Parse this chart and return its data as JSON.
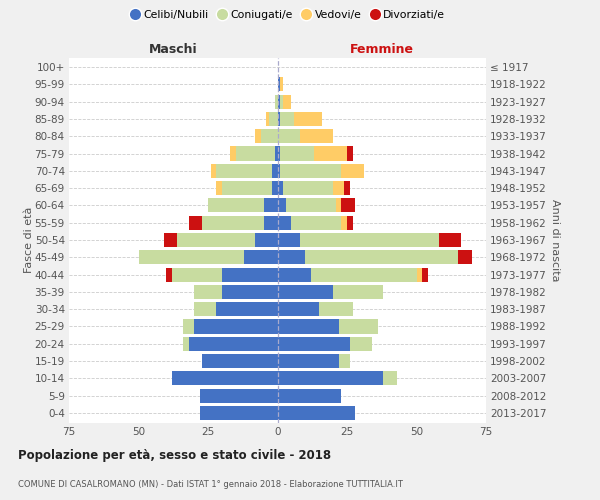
{
  "age_groups": [
    "0-4",
    "5-9",
    "10-14",
    "15-19",
    "20-24",
    "25-29",
    "30-34",
    "35-39",
    "40-44",
    "45-49",
    "50-54",
    "55-59",
    "60-64",
    "65-69",
    "70-74",
    "75-79",
    "80-84",
    "85-89",
    "90-94",
    "95-99",
    "100+"
  ],
  "birth_years": [
    "2013-2017",
    "2008-2012",
    "2003-2007",
    "1998-2002",
    "1993-1997",
    "1988-1992",
    "1983-1987",
    "1978-1982",
    "1973-1977",
    "1968-1972",
    "1963-1967",
    "1958-1962",
    "1953-1957",
    "1948-1952",
    "1943-1947",
    "1938-1942",
    "1933-1937",
    "1928-1932",
    "1923-1927",
    "1918-1922",
    "≤ 1917"
  ],
  "males": {
    "celibi": [
      28,
      28,
      38,
      27,
      32,
      30,
      22,
      20,
      20,
      12,
      8,
      5,
      5,
      2,
      2,
      1,
      0,
      0,
      0,
      0,
      0
    ],
    "coniugati": [
      0,
      0,
      0,
      0,
      2,
      4,
      8,
      10,
      18,
      38,
      28,
      22,
      20,
      18,
      20,
      14,
      6,
      3,
      1,
      0,
      0
    ],
    "vedovi": [
      0,
      0,
      0,
      0,
      0,
      0,
      0,
      0,
      0,
      0,
      0,
      0,
      0,
      2,
      2,
      2,
      2,
      1,
      0,
      0,
      0
    ],
    "divorziati": [
      0,
      0,
      0,
      0,
      0,
      0,
      0,
      0,
      2,
      0,
      5,
      5,
      0,
      0,
      0,
      0,
      0,
      0,
      0,
      0,
      0
    ]
  },
  "females": {
    "nubili": [
      28,
      23,
      38,
      22,
      26,
      22,
      15,
      20,
      12,
      10,
      8,
      5,
      3,
      2,
      1,
      1,
      0,
      1,
      1,
      1,
      0
    ],
    "coniugate": [
      0,
      0,
      5,
      4,
      8,
      14,
      12,
      18,
      38,
      55,
      50,
      18,
      18,
      18,
      22,
      12,
      8,
      5,
      1,
      0,
      0
    ],
    "vedove": [
      0,
      0,
      0,
      0,
      0,
      0,
      0,
      0,
      2,
      0,
      0,
      2,
      2,
      4,
      8,
      12,
      12,
      10,
      3,
      1,
      0
    ],
    "divorziate": [
      0,
      0,
      0,
      0,
      0,
      0,
      0,
      0,
      2,
      5,
      8,
      2,
      5,
      2,
      0,
      2,
      0,
      0,
      0,
      0,
      0
    ]
  },
  "colors": {
    "celibi": "#4472C4",
    "coniugati": "#C8DCA0",
    "vedovi": "#FFCC66",
    "divorziati": "#CC1111"
  },
  "title": "Popolazione per età, sesso e stato civile - 2018",
  "subtitle": "COMUNE DI CASALROMANO (MN) - Dati ISTAT 1° gennaio 2018 - Elaborazione TUTTITALIA.IT",
  "xlabel_left": "Maschi",
  "xlabel_right": "Femmine",
  "ylabel_left": "Fasce di età",
  "ylabel_right": "Anni di nascita",
  "xlim": 75,
  "legend_labels": [
    "Celibi/Nubili",
    "Coniugati/e",
    "Vedovi/e",
    "Divorziati/e"
  ],
  "bg_color": "#f0f0f0",
  "plot_bg_color": "#ffffff"
}
